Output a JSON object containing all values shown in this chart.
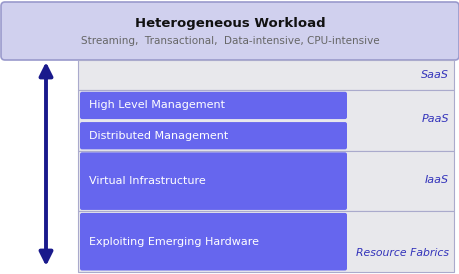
{
  "title_bold": "Heterogeneous Workload",
  "title_sub": "Streaming,  Transactional,  Data-intensive, CPU-intensive",
  "header_bg": "#d0d0ee",
  "header_border": "#9999cc",
  "grey_bg": "#e8e8ec",
  "grey_border": "#aaaacc",
  "bar_color": "#6666ee",
  "bar_text_color": "#ffffff",
  "tag_color": "#3333bb",
  "arrow_color": "#1a1a8c",
  "fig_bg": "#ffffff",
  "grey_sections": [
    {
      "right_label": "SaaS",
      "n_bands": 1,
      "bars": []
    },
    {
      "right_label": "PaaS",
      "n_bands": 2,
      "bars": [
        "High Level Management",
        "Distributed Management"
      ]
    },
    {
      "right_label": "IaaS",
      "n_bands": 2,
      "bars": [
        "Virtual Infrastructure"
      ]
    },
    {
      "right_label": "Resource Fabrics",
      "n_bands": 2,
      "bars": [
        "Exploiting Emerging Hardware"
      ]
    }
  ]
}
